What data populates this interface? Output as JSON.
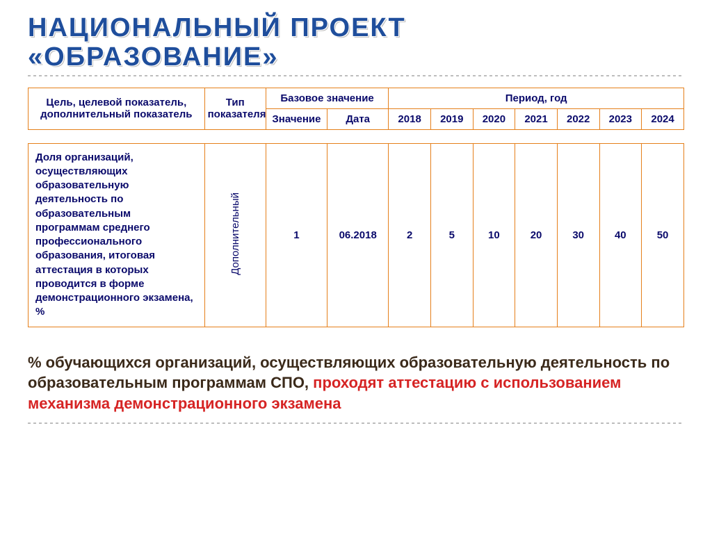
{
  "title": {
    "line1": "НАЦИОНАЛЬНЫЙ ПРОЕКТ",
    "line2": "«ОБРАЗОВАНИЕ»",
    "color": "#1f4e9c",
    "shadow_color": "#c0c0c0",
    "fontsize": 38
  },
  "table": {
    "border_color": "#e57f1a",
    "text_color": "#0a0a6b",
    "header": {
      "indicator": "Цель, целевой показатель, дополнительный показатель",
      "type": "Тип показателя",
      "base_group": "Базовое значение",
      "period_group": "Период, год",
      "value": "Значение",
      "date": "Дата",
      "years": [
        "2018",
        "2019",
        "2020",
        "2021",
        "2022",
        "2023",
        "2024"
      ]
    },
    "row": {
      "indicator": "Доля организаций, осуществляющих образовательную деятельность по образовательным программам среднего профессионального образования, итоговая аттестация в которых проводится в форме демонстрационного экзамена, %",
      "type": "Дополнительный",
      "value": "1",
      "date": "06.2018",
      "years": [
        "2",
        "5",
        "10",
        "20",
        "30",
        "40",
        "50"
      ]
    }
  },
  "bottom": {
    "part1": "% обучающихся организаций, осуществляющих образовательную деятельность по образовательным программам СПО, ",
    "part2": "проходят аттестацию с использованием механизма демонстрационного экзамена",
    "color_dark": "#3b2a1a",
    "color_red": "#d62424",
    "fontsize": 22
  },
  "divider_color": "#bdbdbd",
  "background_color": "#ffffff"
}
